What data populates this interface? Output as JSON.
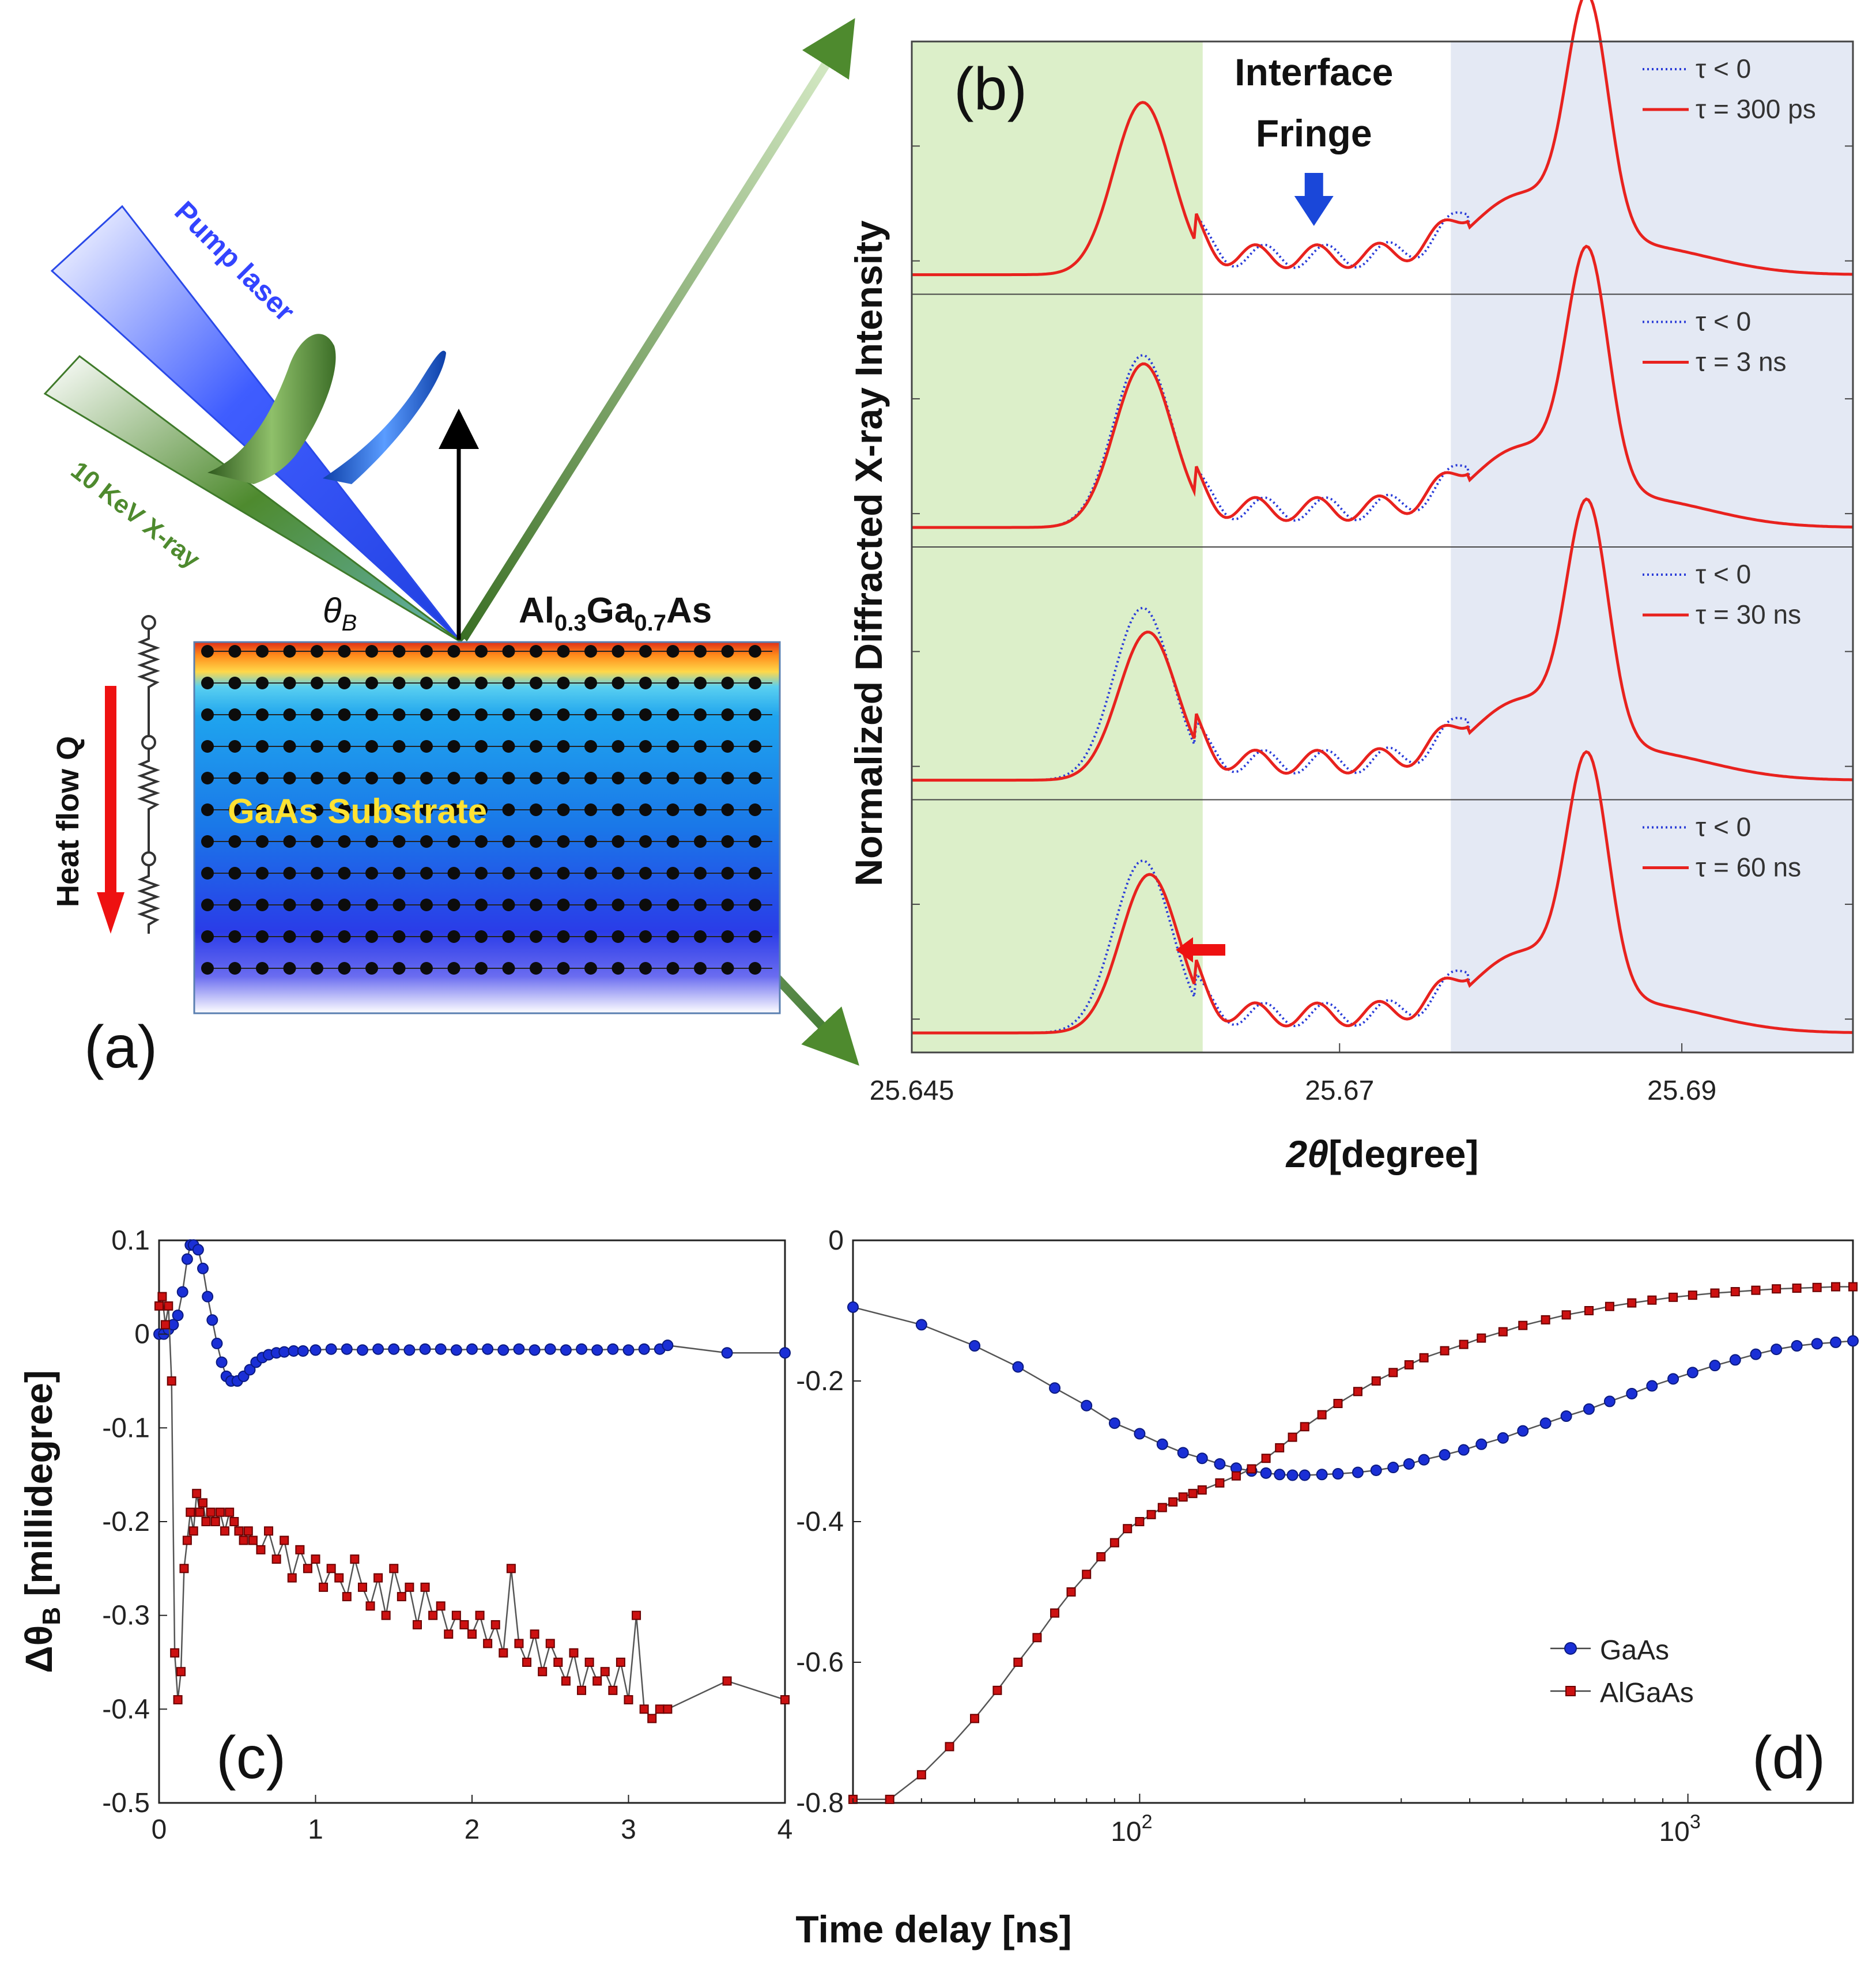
{
  "panel_a": {
    "label": "(a)",
    "pump_laser": "Pump laser",
    "xray": "10 KeV X-ray",
    "theta_b": "θ",
    "theta_b_sub": "B",
    "layer_al": "Al",
    "layer_al_sub": "0.3",
    "layer_ga": "Ga",
    "layer_ga_sub": "0.7",
    "layer_as": "As",
    "substrate": "GaAs Substrate",
    "heat_flow": "Heat flow Q",
    "colors": {
      "pump": "#1f4fff",
      "xray": "#4e8a2e",
      "substrate_text": "#ffe233",
      "heat_arrow": "#ee1111"
    }
  },
  "chart_data": [
    {
      "id": "b",
      "type": "line",
      "panel_label": "(b)",
      "ylabel": "Normalized Diffracted X-ray Intensity",
      "xlabel_symbol": "2θ",
      "xlabel_unit": "[degree]",
      "xticks": [
        "25.645",
        "25.67",
        "25.69"
      ],
      "xtick_values": [
        25.645,
        25.67,
        25.69
      ],
      "xlim": [
        25.645,
        25.7
      ],
      "shaded_regions": [
        {
          "name": "AlGaAs peak region",
          "x": [
            25.645,
            25.662
          ],
          "color": "#dcefc9"
        },
        {
          "name": "GaAs peak region",
          "x": [
            25.6765,
            25.7
          ],
          "color": "#e4e9f4"
        }
      ],
      "annotation": {
        "line1": "Interface",
        "line2": "Fringe",
        "x": 25.6685,
        "color": "#1a47d9"
      },
      "subplots": [
        {
          "legend": [
            "τ < 0",
            "τ = 300 ps"
          ],
          "shift": 0.0,
          "drop": 0.0
        },
        {
          "legend": [
            "τ < 0",
            "τ = 3 ns"
          ],
          "shift": 5e-05,
          "drop": 0.05
        },
        {
          "legend": [
            "τ < 0",
            "τ = 30 ns"
          ],
          "shift": 0.0003,
          "drop": 0.14
        },
        {
          "legend": [
            "τ < 0",
            "τ = 60 ns"
          ],
          "shift": 0.0004,
          "drop": 0.08
        }
      ],
      "series_styles": [
        {
          "name": "τ < 0",
          "color": "#2a3cd8",
          "dash": "dotted"
        },
        {
          "name": "pumped",
          "color": "#e8221e",
          "dash": "solid"
        }
      ],
      "peaks": {
        "algaas": {
          "center": 25.6585,
          "width": 0.0024,
          "height_ref": 0.75
        },
        "gaas": {
          "center": 25.6845,
          "width": 0.0017,
          "height": 1.0
        }
      }
    },
    {
      "id": "c",
      "type": "line",
      "panel_label": "(c)",
      "ylabel": "Δθ",
      "ylabel_sub": "B",
      "ylabel_unit": " [millidegree]",
      "xlim": [
        0,
        4
      ],
      "ylim": [
        -0.5,
        0.1
      ],
      "xticks": [
        "0",
        "1",
        "2",
        "3",
        "4"
      ],
      "yticks": [
        "0.1",
        "0",
        "-0.1",
        "-0.2",
        "-0.3",
        "-0.4",
        "-0.5"
      ],
      "series": [
        {
          "name": "GaAs",
          "color": "#1a2fd6",
          "marker": "circle",
          "x": [
            0,
            0.03,
            0.06,
            0.09,
            0.12,
            0.15,
            0.18,
            0.2,
            0.22,
            0.25,
            0.28,
            0.31,
            0.34,
            0.37,
            0.4,
            0.43,
            0.46,
            0.5,
            0.54,
            0.58,
            0.62,
            0.66,
            0.7,
            0.75,
            0.8,
            0.86,
            0.92,
            1.0,
            1.1,
            1.2,
            1.3,
            1.4,
            1.5,
            1.6,
            1.7,
            1.8,
            1.9,
            2.0,
            2.1,
            2.2,
            2.3,
            2.4,
            2.5,
            2.6,
            2.7,
            2.8,
            2.9,
            3.0,
            3.1,
            3.2,
            3.25,
            3.63,
            4.0
          ],
          "y": [
            0.0,
            0.0,
            0.005,
            0.01,
            0.02,
            0.045,
            0.08,
            0.095,
            0.095,
            0.09,
            0.07,
            0.04,
            0.015,
            -0.01,
            -0.03,
            -0.045,
            -0.05,
            -0.05,
            -0.045,
            -0.038,
            -0.03,
            -0.025,
            -0.022,
            -0.02,
            -0.019,
            -0.018,
            -0.018,
            -0.017,
            -0.016,
            -0.016,
            -0.017,
            -0.016,
            -0.016,
            -0.017,
            -0.016,
            -0.016,
            -0.017,
            -0.016,
            -0.016,
            -0.017,
            -0.016,
            -0.017,
            -0.016,
            -0.017,
            -0.016,
            -0.017,
            -0.016,
            -0.017,
            -0.016,
            -0.016,
            -0.012,
            -0.02,
            -0.02
          ]
        },
        {
          "name": "AlGaAs",
          "color": "#cc1111",
          "marker": "square",
          "x": [
            0,
            0.02,
            0.04,
            0.06,
            0.08,
            0.1,
            0.12,
            0.14,
            0.16,
            0.18,
            0.2,
            0.22,
            0.24,
            0.26,
            0.28,
            0.3,
            0.33,
            0.36,
            0.39,
            0.42,
            0.45,
            0.48,
            0.51,
            0.54,
            0.57,
            0.6,
            0.65,
            0.7,
            0.75,
            0.8,
            0.85,
            0.9,
            0.95,
            1.0,
            1.05,
            1.1,
            1.15,
            1.2,
            1.25,
            1.3,
            1.35,
            1.4,
            1.45,
            1.5,
            1.55,
            1.6,
            1.65,
            1.7,
            1.75,
            1.8,
            1.85,
            1.9,
            1.95,
            2.0,
            2.05,
            2.1,
            2.15,
            2.2,
            2.25,
            2.3,
            2.35,
            2.4,
            2.45,
            2.5,
            2.55,
            2.6,
            2.65,
            2.7,
            2.75,
            2.8,
            2.85,
            2.9,
            2.95,
            3.0,
            3.05,
            3.1,
            3.15,
            3.2,
            3.25,
            3.63,
            4.0
          ],
          "y": [
            0.03,
            0.04,
            0.01,
            0.03,
            -0.05,
            -0.34,
            -0.39,
            -0.36,
            -0.25,
            -0.22,
            -0.19,
            -0.21,
            -0.17,
            -0.19,
            -0.18,
            -0.2,
            -0.19,
            -0.2,
            -0.19,
            -0.21,
            -0.19,
            -0.2,
            -0.21,
            -0.22,
            -0.21,
            -0.22,
            -0.23,
            -0.21,
            -0.24,
            -0.22,
            -0.26,
            -0.23,
            -0.25,
            -0.24,
            -0.27,
            -0.25,
            -0.26,
            -0.28,
            -0.24,
            -0.27,
            -0.29,
            -0.26,
            -0.3,
            -0.25,
            -0.28,
            -0.27,
            -0.31,
            -0.27,
            -0.3,
            -0.29,
            -0.32,
            -0.3,
            -0.31,
            -0.32,
            -0.3,
            -0.33,
            -0.31,
            -0.34,
            -0.25,
            -0.33,
            -0.35,
            -0.32,
            -0.36,
            -0.33,
            -0.35,
            -0.37,
            -0.34,
            -0.38,
            -0.35,
            -0.37,
            -0.36,
            -0.38,
            -0.35,
            -0.39,
            -0.3,
            -0.4,
            -0.41,
            -0.4,
            -0.4,
            -0.37,
            -0.39
          ]
        }
      ]
    },
    {
      "id": "d",
      "type": "line",
      "panel_label": "(d)",
      "xscale": "log",
      "xlim": [
        30,
        2000
      ],
      "ylim": [
        -0.8,
        0
      ],
      "xticks": [
        {
          "value": 100,
          "base": "10",
          "exp": "2"
        },
        {
          "value": 1000,
          "base": "10",
          "exp": "3"
        }
      ],
      "yticks": [
        "0",
        "-0.2",
        "-0.4",
        "-0.6",
        "-0.8"
      ],
      "legend": [
        "GaAs",
        "AlGaAs"
      ],
      "series": [
        {
          "name": "GaAs",
          "color": "#1a2fd6",
          "marker": "circle",
          "x": [
            30,
            40,
            50,
            60,
            70,
            80,
            90,
            100,
            110,
            120,
            130,
            140,
            150,
            160,
            170,
            180,
            190,
            200,
            215,
            230,
            250,
            270,
            290,
            310,
            330,
            360,
            390,
            420,
            460,
            500,
            550,
            600,
            660,
            720,
            790,
            860,
            940,
            1020,
            1120,
            1220,
            1330,
            1450,
            1580,
            1720,
            1860,
            2000
          ],
          "y": [
            -0.095,
            -0.12,
            -0.15,
            -0.18,
            -0.21,
            -0.235,
            -0.26,
            -0.275,
            -0.29,
            -0.302,
            -0.31,
            -0.318,
            -0.324,
            -0.328,
            -0.331,
            -0.333,
            -0.334,
            -0.334,
            -0.333,
            -0.332,
            -0.33,
            -0.327,
            -0.323,
            -0.318,
            -0.312,
            -0.305,
            -0.298,
            -0.29,
            -0.281,
            -0.271,
            -0.26,
            -0.25,
            -0.24,
            -0.229,
            -0.218,
            -0.207,
            -0.197,
            -0.188,
            -0.178,
            -0.17,
            -0.162,
            -0.155,
            -0.15,
            -0.147,
            -0.145,
            -0.143
          ]
        },
        {
          "name": "AlGaAs",
          "color": "#cc1111",
          "marker": "square",
          "x": [
            30,
            35,
            40,
            45,
            50,
            55,
            60,
            65,
            70,
            75,
            80,
            85,
            90,
            95,
            100,
            105,
            110,
            115,
            120,
            125,
            130,
            140,
            150,
            160,
            170,
            180,
            190,
            200,
            215,
            230,
            250,
            270,
            290,
            310,
            330,
            360,
            390,
            420,
            460,
            500,
            550,
            600,
            660,
            720,
            790,
            860,
            940,
            1020,
            1120,
            1220,
            1330,
            1450,
            1580,
            1720,
            1860,
            2000
          ],
          "y": [
            -0.795,
            -0.795,
            -0.76,
            -0.72,
            -0.68,
            -0.64,
            -0.6,
            -0.565,
            -0.53,
            -0.5,
            -0.475,
            -0.45,
            -0.43,
            -0.41,
            -0.4,
            -0.39,
            -0.38,
            -0.372,
            -0.365,
            -0.36,
            -0.355,
            -0.345,
            -0.335,
            -0.325,
            -0.31,
            -0.295,
            -0.28,
            -0.265,
            -0.248,
            -0.232,
            -0.215,
            -0.2,
            -0.188,
            -0.177,
            -0.167,
            -0.157,
            -0.148,
            -0.139,
            -0.13,
            -0.121,
            -0.113,
            -0.106,
            -0.1,
            -0.094,
            -0.089,
            -0.085,
            -0.081,
            -0.078,
            -0.075,
            -0.073,
            -0.071,
            -0.069,
            -0.068,
            -0.067,
            -0.066,
            -0.066
          ]
        }
      ]
    }
  ],
  "shared_xlabel": "Time delay [ns]"
}
